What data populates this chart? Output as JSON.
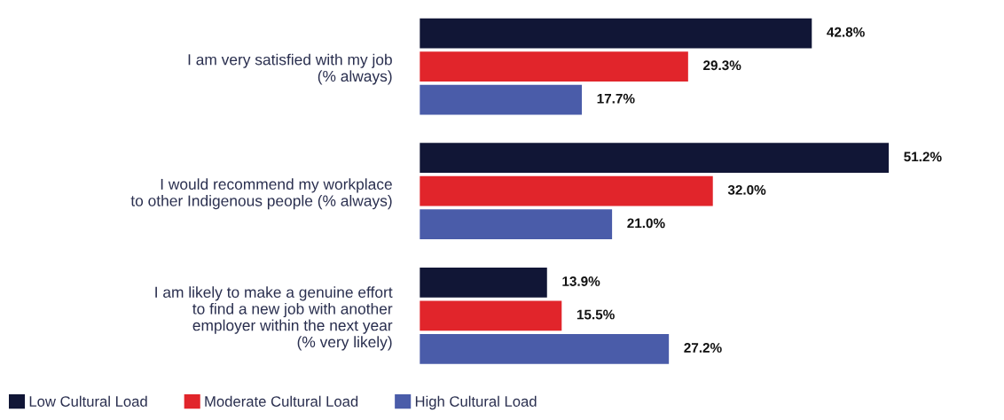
{
  "chart_data": {
    "type": "bar",
    "orientation": "horizontal",
    "categories": [
      "I am very satisfied with my job\n(% always)",
      "I would recommend my workplace\nto other Indigenous people (% always)",
      "I am likely to make a genuine effort\nto find a new job with another\nemployer within the next year\n(% very likely)"
    ],
    "series": [
      {
        "name": "Low Cultural Load",
        "color": "#111636",
        "values": [
          42.8,
          51.2,
          13.9
        ],
        "value_labels": [
          "42.8%",
          "51.2%",
          "13.9%"
        ]
      },
      {
        "name": "Moderate Cultural Load",
        "color": "#e1252b",
        "values": [
          29.3,
          32.0,
          15.5
        ],
        "value_labels": [
          "29.3%",
          "32.0%",
          "15.5%"
        ]
      },
      {
        "name": "High Cultural Load",
        "color": "#4a5ca9",
        "values": [
          17.7,
          21.0,
          27.2
        ],
        "value_labels": [
          "17.7%",
          "21.0%",
          "27.2%"
        ]
      }
    ],
    "legend": "bottom",
    "grid": false
  }
}
